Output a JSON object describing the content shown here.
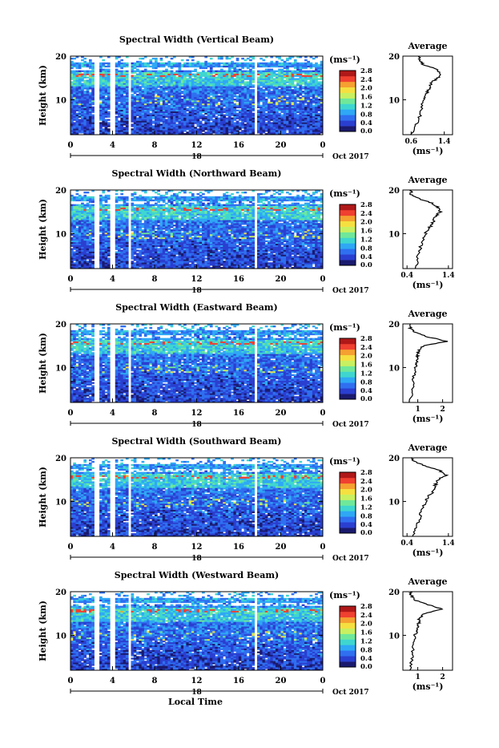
{
  "figure": {
    "xlabel": "Local Time",
    "date_label": "Oct 2017",
    "colorbar_unit": "(ms⁻¹)",
    "colorbar_ticks": [
      "0.0",
      "0.4",
      "0.8",
      "1.2",
      "1.6",
      "2.0",
      "2.4",
      "2.8"
    ],
    "average_title": "Average",
    "average_unit": "(ms⁻¹)",
    "ylabel": "Height (km)"
  },
  "chart_data": [
    {
      "type": "heatmap",
      "title": "Spectral Width (Vertical Beam)",
      "ylabel": "Height (km)",
      "xlabel": "",
      "x_ticks": [
        "0",
        "4",
        "8",
        "12",
        "16",
        "20",
        "0"
      ],
      "y_ticks": [
        "10",
        "20"
      ],
      "ylim": [
        2,
        20
      ],
      "xlim": [
        0,
        24
      ],
      "date_day": "18",
      "date_label": "Oct 2017",
      "colorbar_ticks": [
        0.0,
        0.4,
        0.8,
        1.2,
        1.6,
        2.0,
        2.4,
        2.8
      ],
      "data_gaps_hours": [
        [
          2.2,
          2.7
        ],
        [
          3.8,
          4.2
        ],
        [
          5.4,
          5.8
        ],
        [
          17.4,
          17.8
        ]
      ],
      "average_profile": {
        "title": "Average",
        "xlabel": "(ms⁻¹)",
        "x_ticks": [
          "0.6",
          "1.4"
        ],
        "xlim": [
          0.4,
          1.6
        ],
        "height_km": [
          2,
          4,
          6,
          8,
          10,
          11,
          12,
          13,
          14,
          15,
          16,
          17,
          18,
          19,
          20
        ],
        "width": [
          0.6,
          0.7,
          0.8,
          0.85,
          0.9,
          0.95,
          1.0,
          1.05,
          1.1,
          1.25,
          1.3,
          1.2,
          0.9,
          0.8,
          0.8
        ]
      }
    },
    {
      "type": "heatmap",
      "title": "Spectral Width (Northward Beam)",
      "ylabel": "Height (km)",
      "xlabel": "",
      "x_ticks": [
        "0",
        "4",
        "8",
        "12",
        "16",
        "20",
        "0"
      ],
      "y_ticks": [
        "10",
        "20"
      ],
      "ylim": [
        2,
        20
      ],
      "xlim": [
        0,
        24
      ],
      "date_day": "18",
      "date_label": "Oct 2017",
      "colorbar_ticks": [
        0.0,
        0.4,
        0.8,
        1.2,
        1.6,
        2.0,
        2.4,
        2.8
      ],
      "data_gaps_hours": [
        [
          2.2,
          2.7
        ],
        [
          3.8,
          4.2
        ],
        [
          5.4,
          5.8
        ],
        [
          17.4,
          17.8
        ]
      ],
      "average_profile": {
        "title": "Average",
        "xlabel": "(ms⁻¹)",
        "x_ticks": [
          "0.4",
          "1.4"
        ],
        "xlim": [
          0.3,
          1.5
        ],
        "height_km": [
          2,
          4,
          6,
          8,
          10,
          11,
          12,
          13,
          14,
          15,
          16,
          17,
          18,
          19,
          20
        ],
        "width": [
          0.6,
          0.65,
          0.7,
          0.75,
          0.85,
          0.9,
          1.0,
          1.05,
          1.1,
          1.2,
          1.15,
          1.0,
          0.7,
          0.5,
          0.5
        ]
      }
    },
    {
      "type": "heatmap",
      "title": "Spectral Width (Eastward Beam)",
      "ylabel": "Height (km)",
      "xlabel": "",
      "x_ticks": [
        "0",
        "4",
        "8",
        "12",
        "16",
        "20",
        "0"
      ],
      "y_ticks": [
        "10",
        "20"
      ],
      "ylim": [
        2,
        20
      ],
      "xlim": [
        0,
        24
      ],
      "date_day": "18",
      "date_label": "Oct 2017",
      "colorbar_ticks": [
        0.0,
        0.4,
        0.8,
        1.2,
        1.6,
        2.0,
        2.4,
        2.8
      ],
      "data_gaps_hours": [
        [
          2.2,
          2.7
        ],
        [
          3.8,
          4.2
        ],
        [
          5.4,
          5.8
        ],
        [
          17.4,
          17.8
        ]
      ],
      "average_profile": {
        "title": "Average",
        "xlabel": "(ms⁻¹)",
        "x_ticks": [
          "1",
          "2"
        ],
        "xlim": [
          0.4,
          2.4
        ],
        "height_km": [
          2,
          4,
          6,
          8,
          10,
          11,
          12,
          13,
          14,
          15,
          16,
          17,
          18,
          19,
          20
        ],
        "width": [
          0.7,
          0.75,
          0.8,
          0.85,
          0.9,
          0.95,
          1.0,
          1.0,
          1.05,
          1.2,
          2.2,
          1.4,
          0.9,
          0.7,
          0.7
        ]
      }
    },
    {
      "type": "heatmap",
      "title": "Spectral Width (Southward Beam)",
      "ylabel": "Height (km)",
      "xlabel": "",
      "x_ticks": [
        "0",
        "4",
        "8",
        "12",
        "16",
        "20",
        "0"
      ],
      "y_ticks": [
        "10",
        "20"
      ],
      "ylim": [
        2,
        20
      ],
      "xlim": [
        0,
        24
      ],
      "date_day": "18",
      "date_label": "Oct 2017",
      "colorbar_ticks": [
        0.0,
        0.4,
        0.8,
        1.2,
        1.6,
        2.0,
        2.4,
        2.8
      ],
      "data_gaps_hours": [
        [
          2.2,
          2.7
        ],
        [
          3.8,
          4.2
        ],
        [
          5.4,
          5.8
        ],
        [
          17.4,
          17.8
        ]
      ],
      "average_profile": {
        "title": "Average",
        "xlabel": "(ms⁻¹)",
        "x_ticks": [
          "0.4",
          "1.4"
        ],
        "xlim": [
          0.3,
          1.5
        ],
        "height_km": [
          2,
          4,
          6,
          8,
          10,
          11,
          12,
          13,
          14,
          15,
          16,
          17,
          18,
          19,
          20
        ],
        "width": [
          0.55,
          0.6,
          0.7,
          0.75,
          0.85,
          0.9,
          1.0,
          1.05,
          1.1,
          1.15,
          1.35,
          1.2,
          0.9,
          0.6,
          0.5
        ]
      }
    },
    {
      "type": "heatmap",
      "title": "Spectral Width (Westward Beam)",
      "ylabel": "Height (km)",
      "xlabel": "Local Time",
      "x_ticks": [
        "0",
        "4",
        "8",
        "12",
        "16",
        "20",
        "0"
      ],
      "y_ticks": [
        "10",
        "20"
      ],
      "ylim": [
        2,
        20
      ],
      "xlim": [
        0,
        24
      ],
      "date_day": "18",
      "date_label": "Oct 2017",
      "colorbar_ticks": [
        0.0,
        0.4,
        0.8,
        1.2,
        1.6,
        2.0,
        2.4,
        2.8
      ],
      "data_gaps_hours": [
        [
          2.2,
          2.7
        ],
        [
          3.8,
          4.2
        ],
        [
          5.4,
          5.8
        ],
        [
          17.4,
          17.8
        ]
      ],
      "average_profile": {
        "title": "Average",
        "xlabel": "(ms⁻¹)",
        "x_ticks": [
          "1",
          "2"
        ],
        "xlim": [
          0.4,
          2.4
        ],
        "height_km": [
          2,
          4,
          6,
          8,
          10,
          11,
          12,
          13,
          14,
          15,
          16,
          17,
          18,
          19,
          20
        ],
        "width": [
          0.7,
          0.75,
          0.8,
          0.85,
          0.9,
          0.95,
          1.0,
          1.05,
          1.05,
          1.3,
          2.0,
          1.4,
          0.9,
          0.75,
          0.7
        ]
      }
    }
  ],
  "colormap": [
    "#1a1a6e",
    "#2a3fd0",
    "#2f6ff0",
    "#2fa8f5",
    "#3fd6d0",
    "#6fe89a",
    "#c8f060",
    "#f5e040",
    "#f5a030",
    "#f04030",
    "#b01818"
  ]
}
